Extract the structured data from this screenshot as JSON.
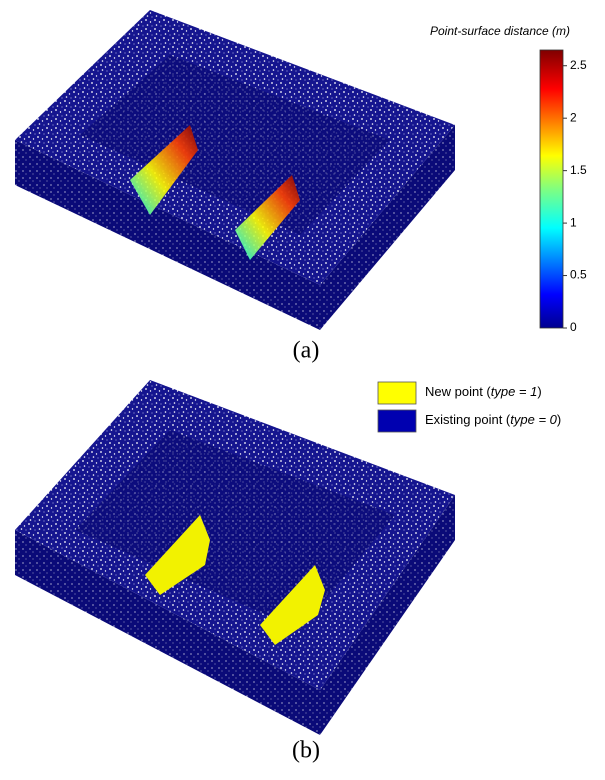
{
  "figure_a": {
    "caption": "(a)",
    "colorbar": {
      "title": "Point-surface distance (m)",
      "lim": [
        0,
        2.65
      ],
      "ticks": [
        0,
        0.5,
        1,
        1.5,
        2,
        2.5
      ]
    }
  },
  "figure_b": {
    "caption": "(b)",
    "legend": [
      {
        "parts": [
          "New point (",
          "type = 1",
          ")"
        ],
        "color": "#ffff00"
      },
      {
        "parts": [
          "Existing point (",
          "type = 0",
          ")"
        ],
        "color": "#0000b0"
      }
    ]
  }
}
